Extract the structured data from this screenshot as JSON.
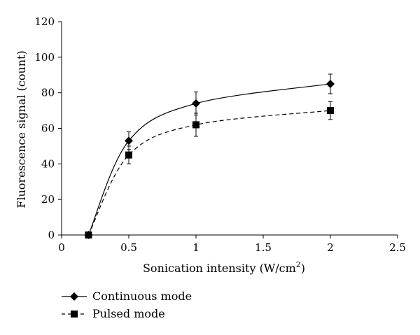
{
  "chart_data": {
    "type": "line",
    "title": "",
    "xlabel": "Sonication intensity (W/cm",
    "xlabel_superscript": "2",
    "xlabel_suffix": ")",
    "ylabel": "Fluorescence signal (count)",
    "xlim": [
      0,
      2.5
    ],
    "ylim": [
      0,
      120
    ],
    "xticks": [
      "0",
      "0.5",
      "1",
      "1.5",
      "2",
      "2.5"
    ],
    "yticks": [
      "0",
      "20",
      "40",
      "60",
      "80",
      "100",
      "120"
    ],
    "grid": false,
    "legend_position": "bottom-left",
    "series": [
      {
        "name": "Continuous mode",
        "marker": "diamond",
        "line": "solid",
        "x": [
          0.2,
          0.5,
          1,
          2
        ],
        "y": [
          0,
          53,
          74,
          85
        ],
        "error": [
          0,
          5,
          6.5,
          5.5
        ]
      },
      {
        "name": "Pulsed mode",
        "marker": "square",
        "line": "dashed",
        "x": [
          0.2,
          0.5,
          1,
          2
        ],
        "y": [
          0,
          45,
          62,
          70
        ],
        "error": [
          0,
          5,
          6.5,
          5
        ]
      }
    ]
  }
}
